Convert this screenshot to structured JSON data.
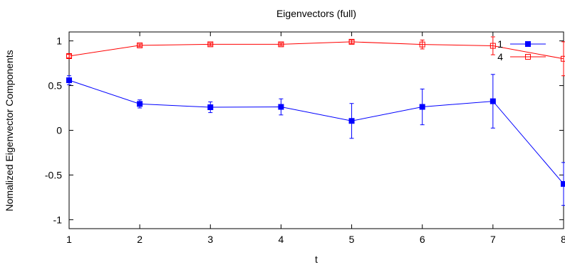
{
  "chart_data": {
    "type": "line",
    "title": "Eigenvectors (full)",
    "xlabel": "t",
    "ylabel": "Nomalized Eigenvector Components",
    "xlim": [
      1,
      8
    ],
    "ylim": [
      -1.1,
      1.1
    ],
    "xticks": [
      1,
      2,
      3,
      4,
      5,
      6,
      7,
      8
    ],
    "yticks": [
      {
        "value": 1,
        "label": "1"
      },
      {
        "value": 0.5,
        "label": "0.5"
      },
      {
        "value": 0,
        "label": "0"
      },
      {
        "value": -0.5,
        "label": "-0.5"
      },
      {
        "value": -1,
        "label": "-1"
      }
    ],
    "grid": false,
    "legend_position": "top-right",
    "series": [
      {
        "name": "1",
        "color": "#0000ff",
        "marker": "filled-square",
        "x": [
          1,
          2,
          3,
          4,
          5,
          6,
          7,
          8
        ],
        "y": [
          0.56,
          0.295,
          0.258,
          0.262,
          0.105,
          0.262,
          0.325,
          -0.6
        ],
        "err": [
          0.05,
          0.045,
          0.06,
          0.09,
          0.195,
          0.2,
          0.3,
          0.24
        ]
      },
      {
        "name": "4",
        "color": "#ff0000",
        "marker": "open-square",
        "x": [
          1,
          2,
          3,
          4,
          5,
          6,
          7,
          8
        ],
        "y": [
          0.83,
          0.95,
          0.962,
          0.962,
          0.99,
          0.96,
          0.945,
          0.8
        ],
        "err": [
          0.02,
          0.015,
          0.015,
          0.015,
          0.02,
          0.05,
          0.1,
          0.19
        ]
      }
    ]
  }
}
